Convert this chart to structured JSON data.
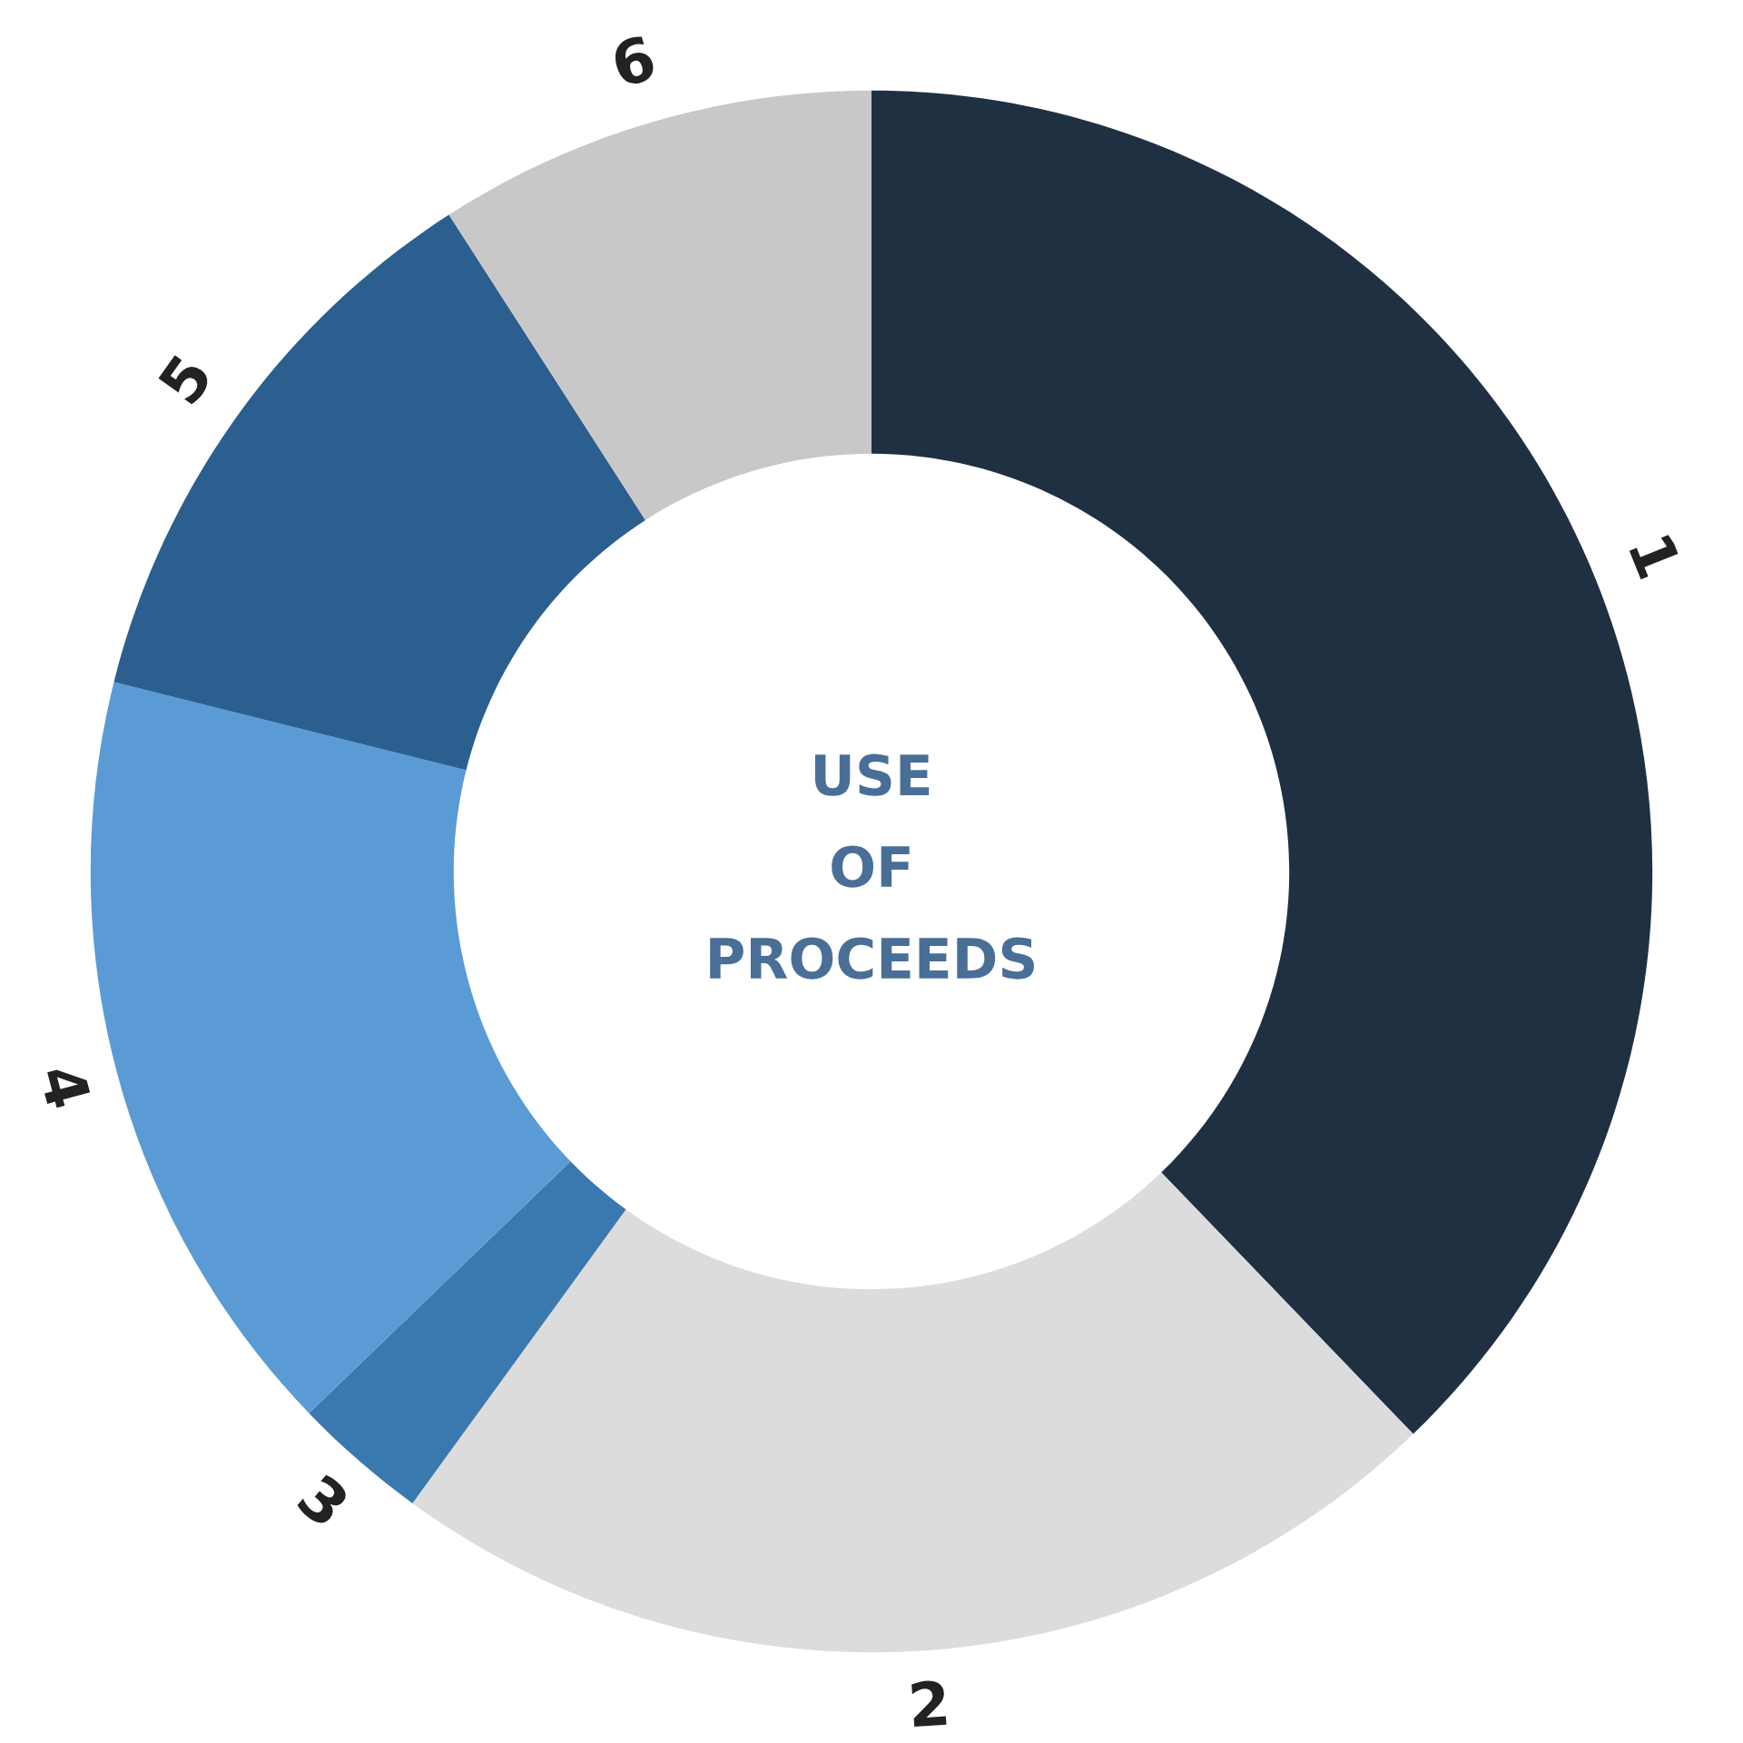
{
  "chart_data": {
    "type": "donut",
    "title": "USE\nOF\nPROCEEDS",
    "categories": [
      "1",
      "2",
      "3",
      "4",
      "5",
      "6"
    ],
    "values": [
      37.8,
      22.2,
      2.8,
      16.1,
      12.0,
      9.1
    ],
    "colors": [
      "#1f3042",
      "#dcdcdc",
      "#3a78b0",
      "#5b9bd5",
      "#2a5f8f",
      "#c8c8c8"
    ]
  }
}
